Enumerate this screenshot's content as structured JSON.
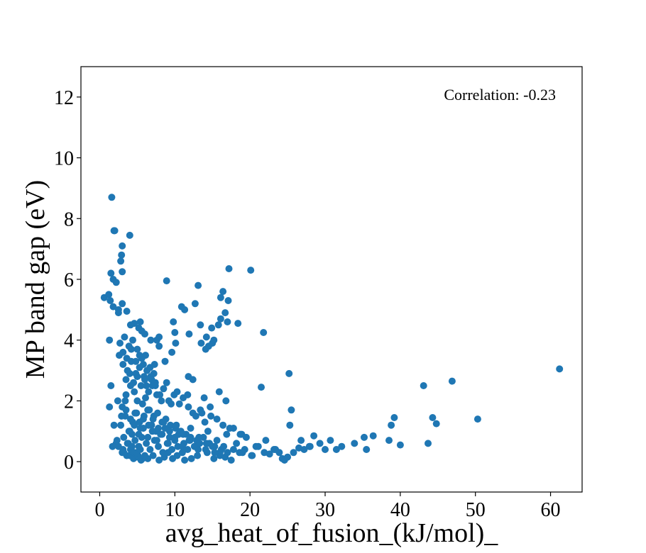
{
  "chart_data": {
    "type": "scatter",
    "title": "",
    "xlabel": "avg_heat_of_fusion_(kJ/mol)_",
    "ylabel": "MP band gap (eV)",
    "xlim": [
      -2.5,
      64.2
    ],
    "ylim": [
      -1,
      13
    ],
    "xticks": [
      0,
      10,
      20,
      30,
      40,
      50,
      60
    ],
    "yticks": [
      0,
      2,
      4,
      6,
      8,
      10,
      12
    ],
    "grid": false,
    "marker_color": "#1f77b4",
    "annotation": "Correlation: -0.23",
    "series": [
      {
        "x": [
          1.6,
          1.9,
          2.0,
          4.0,
          3.0,
          2.9,
          2.8,
          3.0,
          1.5,
          1.8,
          2.2,
          0.6,
          1.2,
          1.4,
          1.8,
          2.5,
          2.5,
          3.0,
          3.6,
          4.1,
          4.6,
          5.2,
          5.4,
          5.6,
          6.0,
          6.8,
          7.6,
          7.9,
          8.9,
          9.8,
          10.0,
          10.9,
          11.3,
          11.9,
          12.7,
          13.1,
          13.4,
          14.2,
          14.5,
          15.0,
          15.8,
          16.1,
          16.4,
          16.7,
          17.1,
          17.2,
          17.0,
          18.4,
          20.1,
          21.8,
          21.5,
          25.2,
          25.5,
          25.3,
          30.7,
          31.5,
          32.2,
          35.2,
          36.4,
          38.5,
          38.8,
          39.2,
          40.0,
          43.1,
          43.7,
          44.3,
          44.8,
          46.9,
          50.3,
          61.2,
          1.3,
          1.5,
          1.3,
          1.9,
          2.2,
          3.2,
          4.0,
          4.5,
          5.1,
          5.5,
          6.4,
          7.1,
          7.9,
          8.6,
          9.1,
          9.7,
          10.3,
          11.3,
          12.2,
          13.0,
          14.3,
          15.2,
          16.0,
          16.7,
          17.5,
          18.6,
          19.3,
          20.2,
          21.1,
          21.9,
          22.6,
          23.2,
          23.9,
          24.3,
          24.6,
          25.0,
          25.8,
          26.5,
          27.2,
          27.9,
          28.5,
          29.3,
          30.0,
          2.6,
          3.1,
          3.7,
          4.2,
          4.8,
          5.3,
          5.9,
          6.3,
          6.9,
          7.4,
          8.0,
          8.5,
          9.2,
          9.9,
          10.6,
          11.1,
          11.8,
          12.4,
          13.4,
          14.8,
          15.6,
          16.4,
          17.8,
          18.9,
          2.4,
          3.0,
          3.5,
          4.1,
          4.6,
          5.0,
          5.7,
          6.1,
          6.6,
          7.2,
          7.7,
          8.3,
          8.8,
          9.4,
          10.1,
          10.8,
          11.5,
          12.1,
          12.9,
          13.8,
          14.6,
          15.3,
          16.2,
          17.0,
          2.8,
          3.4,
          3.9,
          4.4,
          4.9,
          5.4,
          5.8,
          6.4,
          6.9,
          7.5,
          8.1,
          8.7,
          9.3,
          10.0,
          10.5,
          11.2,
          11.9,
          12.6,
          13.3,
          14.1,
          15.0,
          16.0,
          3.2,
          3.8,
          4.3,
          4.7,
          5.2,
          5.6,
          6.2,
          6.7,
          7.3,
          7.8,
          8.4,
          9.0,
          9.6,
          10.4,
          11.0,
          11.7,
          3.5,
          4.0,
          4.5,
          5.0,
          5.5,
          6.0,
          6.5,
          7.0,
          7.6,
          8.2,
          3.1,
          3.6,
          4.2,
          4.8,
          5.3,
          5.8,
          6.3,
          6.8,
          7.4,
          2.7,
          3.3,
          3.9,
          4.4,
          5.0,
          5.6,
          6.1,
          6.7,
          7.2,
          3.0,
          3.6,
          4.1,
          4.6,
          5.1,
          5.7,
          2.5,
          3.1,
          3.7,
          4.3,
          4.9,
          5.4,
          6.0,
          4.0,
          4.6,
          5.2,
          5.8,
          6.4,
          7.0,
          7.6,
          8.3,
          9.1,
          10.0,
          11.0,
          12.0,
          13.1,
          14.2,
          15.3,
          16.5,
          17.8,
          19.0,
          20.3,
          2.9,
          3.5,
          4.1,
          4.7,
          5.3,
          5.9,
          6.5,
          7.1,
          7.8,
          8.5,
          9.3,
          10.2,
          11.1,
          12.1,
          13.2,
          14.4,
          15.6,
          16.9,
          18.2,
          19.5,
          20.8,
          22.1,
          23.4,
          1.7,
          2.3,
          3.4,
          6.2,
          8.9,
          9.5,
          12.8,
          14.0,
          17.3,
          18.7,
          26.8,
          28.0,
          33.9,
          35.5,
          11.8,
          12.4,
          10.3,
          11.7,
          13.9,
          13.6,
          14.7,
          15.9,
          16.8,
          13.5,
          14.1,
          14.9,
          15.2,
          16.1,
          10.1,
          9.6,
          8.7,
          7.9,
          7.3
        ],
        "y": [
          8.7,
          7.6,
          7.6,
          7.45,
          7.1,
          6.8,
          6.6,
          6.25,
          6.2,
          6.0,
          5.9,
          5.4,
          5.5,
          5.3,
          5.1,
          5.0,
          4.9,
          5.2,
          4.95,
          4.5,
          4.55,
          4.4,
          4.6,
          4.3,
          4.2,
          4.0,
          4.0,
          4.1,
          5.95,
          4.6,
          4.25,
          5.1,
          5.0,
          4.2,
          5.2,
          5.8,
          4.5,
          4.1,
          3.8,
          3.9,
          4.5,
          5.4,
          5.6,
          4.9,
          5.3,
          6.35,
          4.6,
          4.55,
          6.3,
          4.25,
          2.45,
          2.9,
          1.7,
          1.2,
          0.7,
          0.4,
          0.5,
          0.8,
          0.85,
          0.7,
          1.2,
          1.45,
          0.55,
          2.5,
          0.6,
          1.45,
          1.25,
          2.65,
          1.4,
          3.05,
          4.0,
          2.5,
          1.8,
          1.2,
          0.6,
          0.3,
          0.2,
          0.1,
          0.15,
          0.05,
          0.1,
          0.2,
          0.05,
          0.15,
          0.3,
          0.1,
          0.2,
          0.05,
          0.1,
          0.2,
          0.3,
          0.1,
          0.2,
          0.15,
          0.05,
          0.3,
          0.4,
          0.2,
          0.5,
          0.3,
          0.25,
          0.4,
          0.3,
          0.1,
          0.05,
          0.15,
          0.3,
          0.45,
          0.4,
          0.5,
          0.85,
          0.6,
          0.4,
          3.5,
          3.2,
          3.0,
          3.3,
          2.9,
          3.1,
          2.8,
          3.0,
          2.7,
          2.5,
          2.2,
          2.4,
          2.0,
          2.2,
          1.9,
          2.1,
          1.8,
          1.6,
          1.7,
          1.5,
          1.4,
          1.2,
          1.1,
          0.9,
          2.0,
          1.8,
          2.2,
          2.5,
          2.3,
          2.0,
          1.9,
          2.1,
          1.7,
          1.5,
          1.6,
          1.3,
          1.4,
          1.2,
          1.1,
          1.0,
          0.9,
          0.8,
          0.7,
          0.8,
          0.6,
          0.5,
          0.4,
          0.3,
          1.2,
          1.5,
          1.0,
          1.3,
          1.6,
          1.1,
          1.4,
          1.7,
          1.2,
          1.0,
          0.9,
          1.1,
          0.8,
          0.7,
          0.9,
          0.6,
          0.7,
          0.5,
          0.6,
          0.4,
          0.5,
          0.3,
          0.8,
          0.6,
          0.9,
          0.7,
          0.5,
          0.8,
          0.6,
          0.4,
          0.7,
          0.5,
          0.3,
          0.6,
          0.4,
          0.5,
          0.3,
          0.4,
          2.7,
          2.9,
          2.6,
          2.8,
          2.5,
          2.7,
          2.3,
          2.5,
          2.2,
          2.0,
          3.6,
          3.4,
          3.7,
          3.3,
          3.5,
          3.2,
          3.0,
          2.8,
          2.6,
          3.9,
          4.1,
          3.8,
          4.0,
          3.7,
          3.4,
          3.5,
          3.1,
          2.9,
          0.3,
          0.2,
          0.4,
          0.3,
          0.2,
          0.1,
          0.5,
          0.4,
          0.6,
          0.5,
          0.3,
          0.4,
          0.2,
          1.0,
          1.2,
          0.9,
          1.1,
          0.8,
          1.0,
          0.7,
          0.9,
          0.6,
          0.8,
          0.5,
          0.7,
          0.4,
          0.6,
          0.3,
          0.5,
          0.4,
          0.3,
          0.2,
          1.5,
          1.7,
          1.4,
          1.6,
          1.3,
          1.5,
          1.2,
          1.4,
          1.1,
          1.3,
          1.0,
          1.2,
          0.9,
          1.1,
          0.8,
          1.0,
          0.7,
          0.9,
          0.6,
          0.8,
          0.5,
          0.7,
          0.4,
          0.5,
          0.7,
          2.0,
          2.5,
          2.6,
          1.9,
          1.5,
          1.3,
          1.1,
          0.9,
          0.7,
          0.5,
          0.6,
          0.4,
          2.8,
          2.7,
          2.3,
          2.2,
          2.1,
          1.6,
          1.8,
          2.3,
          2.0,
          3.9,
          3.7,
          4.4,
          4.0,
          4.7,
          3.9,
          3.6,
          3.3,
          3.8,
          3.2
        ]
      }
    ]
  }
}
